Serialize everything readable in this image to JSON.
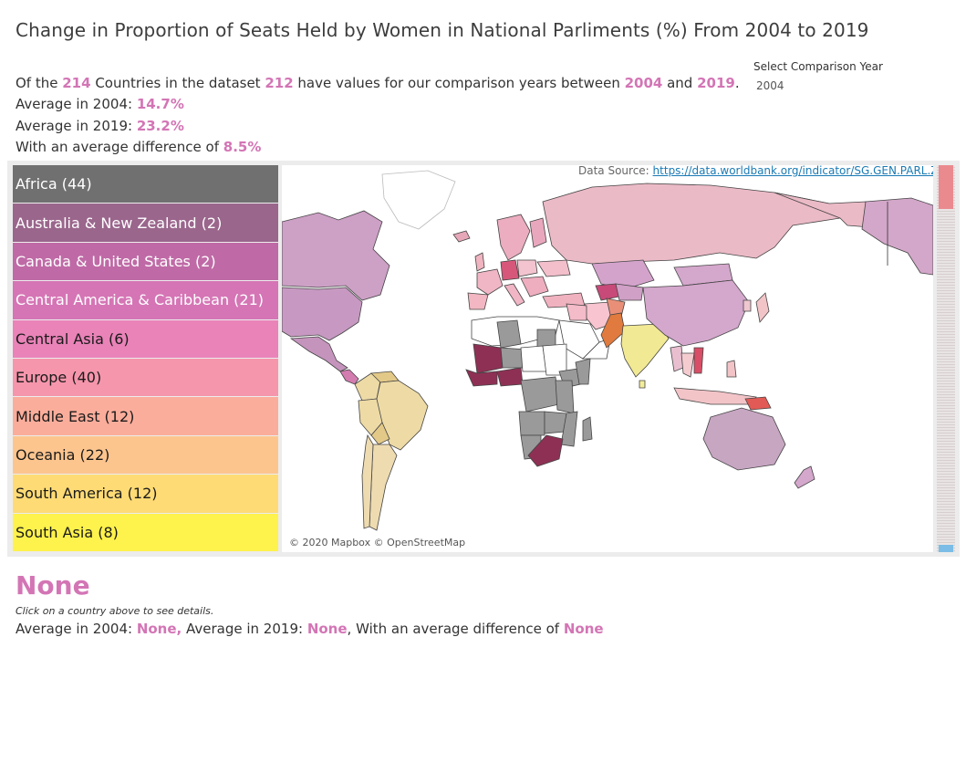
{
  "title": "Change in Proportion of Seats Held by Women in National Parliments (%) From 2004 to 2019",
  "summary": {
    "line1_pre": "Of the ",
    "total_countries": "214",
    "line1_mid1": " Countries in the dataset ",
    "countries_with_values": "212",
    "line1_mid2": " have values for our comparison years between ",
    "year_start": "2004",
    "line1_and": " and ",
    "year_end": "2019",
    "line1_end": ".",
    "avg_start_label": "Average in 2004: ",
    "avg_start_value": "14.7%",
    "avg_end_label": "Average in 2019: ",
    "avg_end_value": "23.2%",
    "diff_label": "With an average difference of ",
    "diff_value": "8.5%"
  },
  "filter": {
    "label": "Select Comparison Year",
    "value": "2004"
  },
  "legend": {
    "regions": [
      {
        "label": "Africa  (44)",
        "color": "#707070",
        "text_color": "#ffffff"
      },
      {
        "label": "Australia & New Zealand  (2)",
        "color": "#9a668c",
        "text_color": "#ffffff"
      },
      {
        "label": "Canada & United States  (2)",
        "color": "#bf6aa6",
        "text_color": "#ffffff"
      },
      {
        "label": "Central America & Caribbean  (21)",
        "color": "#d575b5",
        "text_color": "#ffffff"
      },
      {
        "label": "Central Asia  (6)",
        "color": "#e983b8",
        "text_color": "#1a1a1a"
      },
      {
        "label": "Europe  (40)",
        "color": "#f596ac",
        "text_color": "#1a1a1a"
      },
      {
        "label": "Middle East  (12)",
        "color": "#fbad9b",
        "text_color": "#1a1a1a"
      },
      {
        "label": "Oceania  (22)",
        "color": "#fdc58e",
        "text_color": "#1a1a1a"
      },
      {
        "label": "South America  (12)",
        "color": "#fedb75",
        "text_color": "#1a1a1a"
      },
      {
        "label": "South Asia  (8)",
        "color": "#fef24c",
        "text_color": "#1a1a1a"
      }
    ]
  },
  "map": {
    "datasource_label": "Data Source: ",
    "datasource_link": "https://data.worldbank.org/indicator/SG.GEN.PARL.ZS",
    "attribution": "© 2020 Mapbox © OpenStreetMap"
  },
  "detail": {
    "name": "None",
    "hint": "Click on a country above to see details.",
    "avg_start_label": "Average in 2004: ",
    "avg_start_value": "None,",
    "avg_end_label": " Average in 2019: ",
    "avg_end_value": "None",
    "diff_label": ", With an average difference of  ",
    "diff_value": "None"
  }
}
